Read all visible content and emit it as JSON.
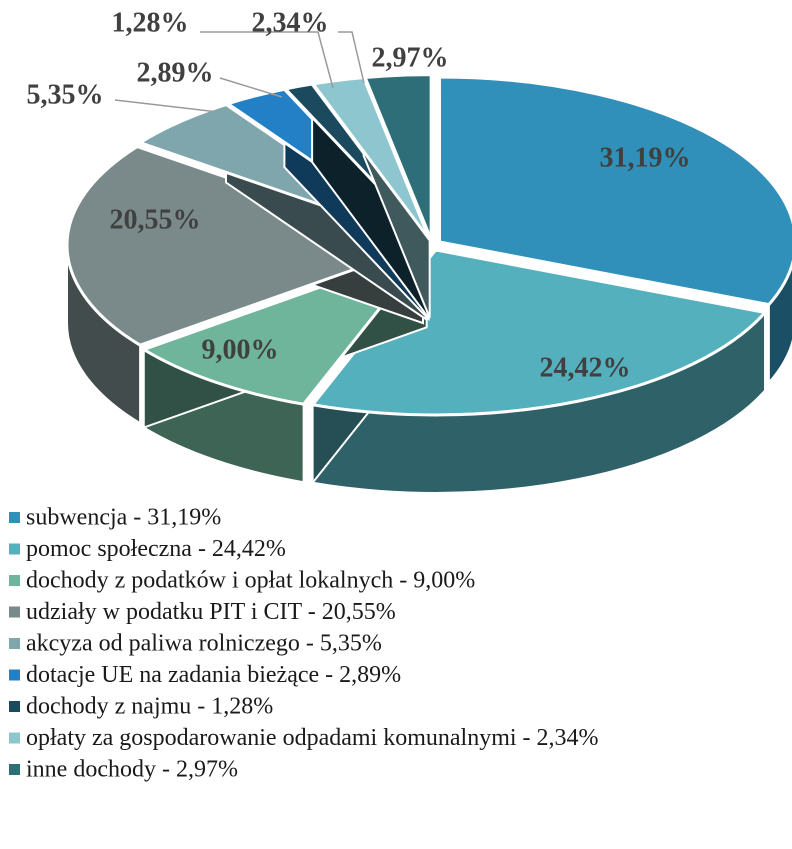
{
  "chart_data": {
    "type": "pie3d",
    "categories": [
      "subwencja - 31,19%",
      "pomoc społeczna - 24,42%",
      "dochody z podatków i opłat lokalnych - 9,00%",
      "udziały w podatku PIT i CIT - 20,55%",
      "akcyza od paliwa rolniczego - 5,35%",
      "dotacje UE na zadania bieżące - 2,89%",
      "dochody z najmu - 1,28%",
      "opłaty za gospodarowanie odpadami komunalnymi - 2,34%",
      "inne dochody - 2,97%"
    ],
    "values": [
      31.19,
      24.42,
      9.0,
      20.55,
      5.35,
      2.89,
      1.28,
      2.34,
      2.97
    ],
    "value_labels": [
      "31,19%",
      "24,42%",
      "9,00%",
      "20,55%",
      "5,35%",
      "2,89%",
      "1,28%",
      "2,34%",
      "2,97%"
    ],
    "colors": [
      "#3190b9",
      "#55b0bd",
      "#6fb59b",
      "#7a8a8a",
      "#7fa6ad",
      "#2480c6",
      "#1b4a5e",
      "#8ec6cf",
      "#2d6e78"
    ],
    "legend": "bottom"
  }
}
